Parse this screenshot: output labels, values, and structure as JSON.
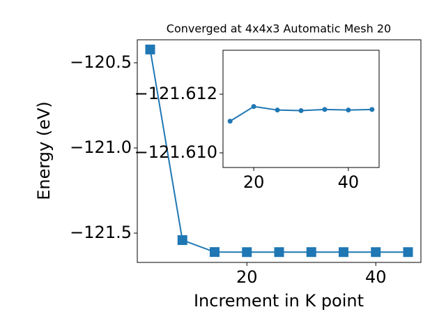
{
  "chart_data": [
    {
      "type": "line",
      "title": "Converged at 4x4x3 Automatic Mesh 20",
      "xlabel": "Increment in K point",
      "ylabel": "Energy (eV)",
      "x": [
        5,
        10,
        15,
        20,
        25,
        30,
        35,
        40,
        45
      ],
      "series": [
        {
          "color": "#1f77b4",
          "marker": "square",
          "values": [
            -120.422,
            -121.541,
            -121.6111,
            -121.6116,
            -121.6115,
            -121.6114,
            -121.6115,
            -121.6115,
            -121.6115
          ]
        }
      ],
      "xlim": [
        3,
        47
      ],
      "xticks": [
        20,
        40
      ],
      "ylim": [
        -121.672,
        -120.365
      ],
      "yticks": [
        {
          "value": -121.5,
          "label": "−121.5"
        },
        {
          "value": -121.0,
          "label": "−121.0"
        },
        {
          "value": -120.5,
          "label": "−120.5"
        }
      ]
    },
    {
      "type": "line",
      "x": [
        15,
        20,
        25,
        30,
        35,
        40,
        45
      ],
      "series": [
        {
          "color": "#1f77b4",
          "marker": "circle",
          "values": [
            -121.61108,
            -121.61158,
            -121.61146,
            -121.61144,
            -121.61148,
            -121.61146,
            -121.61148
          ]
        }
      ],
      "xlim": [
        13.5,
        46.5
      ],
      "xticks": [
        20,
        40
      ],
      "ylim": [
        -121.6095,
        -121.6135
      ],
      "yticks": [
        {
          "value": -121.61,
          "label": "−121.610"
        },
        {
          "value": -121.612,
          "label": "−121.612"
        }
      ]
    }
  ]
}
